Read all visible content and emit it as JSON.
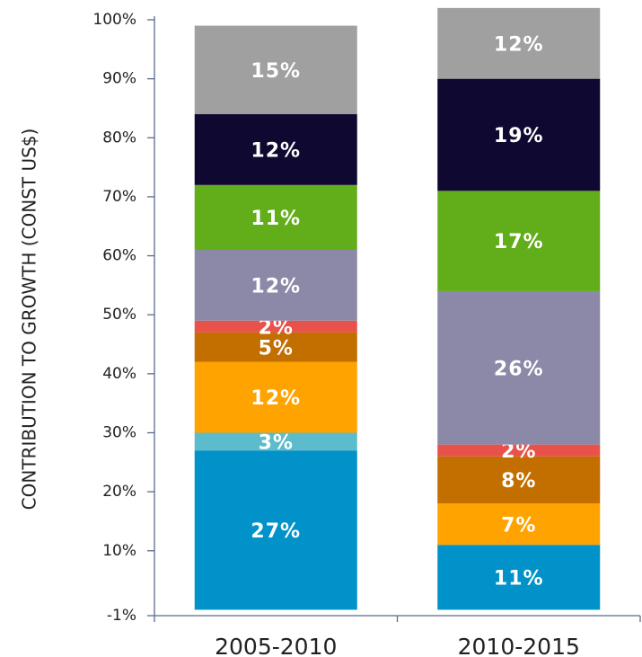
{
  "chart_data": {
    "type": "stacked_bar",
    "y_label": "CONTRIBUTION TO GROWTH (CONST US$)",
    "categories": [
      "2005-2010",
      "2010-2015"
    ],
    "series": [
      {
        "color": "#0092c8",
        "values": [
          27,
          11
        ],
        "value_labels": [
          "27%",
          "11%"
        ]
      },
      {
        "color": "#5cbccc",
        "values": [
          3,
          null
        ],
        "value_labels": [
          "3%",
          null
        ]
      },
      {
        "color": "#ffa300",
        "values": [
          12,
          7
        ],
        "value_labels": [
          "12%",
          "7%"
        ]
      },
      {
        "color": "#c36f00",
        "values": [
          5,
          8
        ],
        "value_labels": [
          "5%",
          "8%"
        ]
      },
      {
        "color": "#e8524a",
        "values": [
          2,
          2
        ],
        "value_labels": [
          "2%",
          "2%"
        ]
      },
      {
        "color": "#8c89a8",
        "values": [
          12,
          26
        ],
        "value_labels": [
          "12%",
          "26%"
        ]
      },
      {
        "color": "#62ad1a",
        "values": [
          11,
          17
        ],
        "value_labels": [
          "11%",
          "17%"
        ]
      },
      {
        "color": "#0f0830",
        "values": [
          12,
          19
        ],
        "value_labels": [
          "12%",
          "19%"
        ]
      },
      {
        "color": "#a0a0a0",
        "values": [
          15,
          12
        ],
        "value_labels": [
          "15%",
          "12%"
        ]
      }
    ],
    "ylim": [
      -1,
      100
    ],
    "yticks": [
      {
        "value": -1,
        "label": "-1%"
      },
      {
        "value": 10,
        "label": "10%"
      },
      {
        "value": 20,
        "label": "20%"
      },
      {
        "value": 30,
        "label": "30%"
      },
      {
        "value": 40,
        "label": "40%"
      },
      {
        "value": 50,
        "label": "50%"
      },
      {
        "value": 60,
        "label": "60%"
      },
      {
        "value": 70,
        "label": "70%"
      },
      {
        "value": 80,
        "label": "80%"
      },
      {
        "value": 90,
        "label": "90%"
      },
      {
        "value": 100,
        "label": "100%"
      }
    ],
    "grid": false
  }
}
